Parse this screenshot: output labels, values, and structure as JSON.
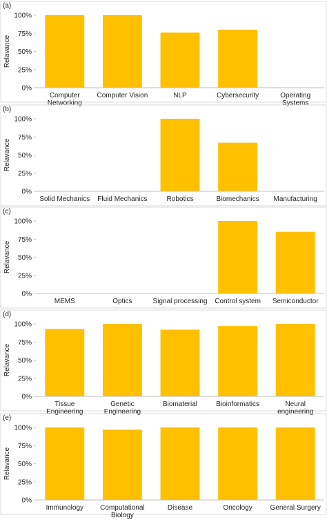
{
  "chart_data": [
    {
      "type": "bar",
      "panel_label": "(a)",
      "y_label": "Relavance",
      "categories": [
        "Computer\nNetworking",
        "Computer Vision",
        "NLP",
        "Cybersecurity",
        "Operating\nSystems"
      ],
      "values": [
        100,
        100,
        76,
        80,
        0
      ],
      "color": "#ffc000",
      "ylim": [
        0,
        100
      ],
      "yticks": [
        {
          "value": 0,
          "label": "0%"
        },
        {
          "value": 25,
          "label": "25%"
        },
        {
          "value": 50,
          "label": "50%"
        },
        {
          "value": 75,
          "label": "75%"
        },
        {
          "value": 100,
          "label": "100%"
        }
      ]
    },
    {
      "type": "bar",
      "panel_label": "(b)",
      "y_label": "Relavance",
      "categories": [
        "Solid Mechanics",
        "Fluid Mechanics",
        "Robotics",
        "Biomechanics",
        "Manufacturing"
      ],
      "values": [
        0,
        0,
        100,
        67,
        0
      ],
      "color": "#ffc000",
      "ylim": [
        0,
        100
      ],
      "yticks": [
        {
          "value": 0,
          "label": "0%"
        },
        {
          "value": 25,
          "label": "25%"
        },
        {
          "value": 50,
          "label": "50%"
        },
        {
          "value": 75,
          "label": "75%"
        },
        {
          "value": 100,
          "label": "100%"
        }
      ]
    },
    {
      "type": "bar",
      "panel_label": "(c)",
      "y_label": "Relavance",
      "categories": [
        "MEMS",
        "Optics",
        "Signal processing",
        "Control system",
        "Semiconductor"
      ],
      "values": [
        0,
        0,
        0,
        100,
        85
      ],
      "color": "#ffc000",
      "ylim": [
        0,
        100
      ],
      "yticks": [
        {
          "value": 0,
          "label": "0%"
        },
        {
          "value": 25,
          "label": "25%"
        },
        {
          "value": 50,
          "label": "50%"
        },
        {
          "value": 75,
          "label": "75%"
        },
        {
          "value": 100,
          "label": "100%"
        }
      ]
    },
    {
      "type": "bar",
      "panel_label": "(d)",
      "y_label": "Relavance",
      "categories": [
        "Tissue\nEngineering",
        "Genetic\nEngineering",
        "Biomaterial",
        "Bioinformatics",
        "Neural\nengineering"
      ],
      "values": [
        93,
        100,
        92,
        97,
        100
      ],
      "color": "#ffc000",
      "ylim": [
        0,
        100
      ],
      "yticks": [
        {
          "value": 0,
          "label": "0%"
        },
        {
          "value": 25,
          "label": "25%"
        },
        {
          "value": 50,
          "label": "50%"
        },
        {
          "value": 75,
          "label": "75%"
        },
        {
          "value": 100,
          "label": "100%"
        }
      ]
    },
    {
      "type": "bar",
      "panel_label": "(e)",
      "y_label": "Relavance",
      "categories": [
        "Immunology",
        "Computational\nBiology",
        "Disease",
        "Oncology",
        "General Surgery"
      ],
      "values": [
        100,
        97,
        100,
        100,
        100
      ],
      "color": "#ffc000",
      "ylim": [
        0,
        100
      ],
      "yticks": [
        {
          "value": 0,
          "label": "0%"
        },
        {
          "value": 25,
          "label": "25%"
        },
        {
          "value": 50,
          "label": "50%"
        },
        {
          "value": 75,
          "label": "75%"
        },
        {
          "value": 100,
          "label": "100%"
        }
      ]
    }
  ]
}
